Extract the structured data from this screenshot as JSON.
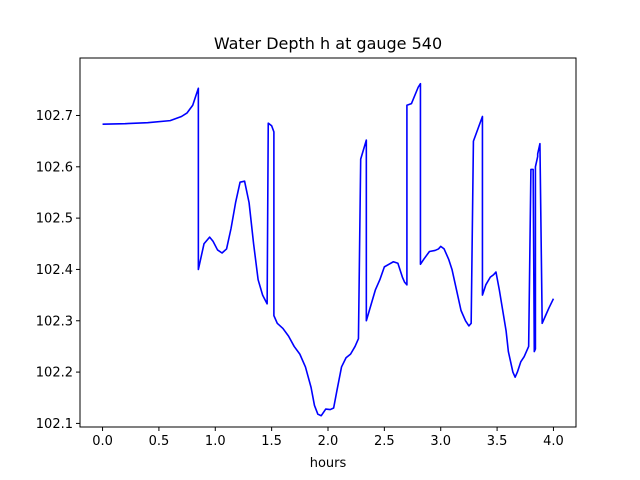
{
  "chart_data": {
    "type": "line",
    "title": "Water Depth h at gauge 540",
    "xlabel": "hours",
    "ylabel": "",
    "xlim": [
      -0.2,
      4.2
    ],
    "ylim": [
      102.093,
      102.812
    ],
    "xticks": [
      0.0,
      0.5,
      1.0,
      1.5,
      2.0,
      2.5,
      3.0,
      3.5,
      4.0
    ],
    "xtick_labels": [
      "0.0",
      "0.5",
      "1.0",
      "1.5",
      "2.0",
      "2.5",
      "3.0",
      "3.5",
      "4.0"
    ],
    "yticks": [
      102.1,
      102.2,
      102.3,
      102.4,
      102.5,
      102.6,
      102.7
    ],
    "ytick_labels": [
      "102.1",
      "102.2",
      "102.3",
      "102.4",
      "102.5",
      "102.6",
      "102.7"
    ],
    "grid": false,
    "series": [
      {
        "color": "#0000ff",
        "x": [
          0.0,
          0.2,
          0.4,
          0.6,
          0.7,
          0.75,
          0.8,
          0.83,
          0.85,
          0.85,
          0.9,
          0.95,
          0.98,
          1.02,
          1.06,
          1.1,
          1.14,
          1.18,
          1.22,
          1.26,
          1.3,
          1.34,
          1.38,
          1.42,
          1.46,
          1.47,
          1.47,
          1.5,
          1.52,
          1.52,
          1.55,
          1.6,
          1.65,
          1.7,
          1.75,
          1.8,
          1.85,
          1.88,
          1.91,
          1.94,
          1.98,
          2.02,
          2.05,
          2.08,
          2.12,
          2.16,
          2.2,
          2.24,
          2.27,
          2.29,
          2.29,
          2.34,
          2.34,
          2.38,
          2.42,
          2.46,
          2.5,
          2.54,
          2.58,
          2.62,
          2.66,
          2.68,
          2.7,
          2.7,
          2.74,
          2.8,
          2.82,
          2.82,
          2.85,
          2.9,
          2.95,
          2.98,
          3.0,
          3.03,
          3.07,
          3.1,
          3.14,
          3.18,
          3.22,
          3.25,
          3.27,
          3.29,
          3.29,
          3.37,
          3.37,
          3.4,
          3.44,
          3.47,
          3.49,
          3.52,
          3.55,
          3.58,
          3.6,
          3.62,
          3.64,
          3.66,
          3.68,
          3.71,
          3.74,
          3.78,
          3.8,
          3.82,
          3.83,
          3.83,
          3.84,
          3.84,
          3.85,
          3.86,
          3.86,
          3.88,
          3.88,
          3.9,
          3.93,
          3.96,
          4.0
        ],
        "y": [
          102.683,
          102.684,
          102.686,
          102.69,
          102.698,
          102.705,
          102.72,
          102.74,
          102.753,
          102.4,
          102.45,
          102.463,
          102.455,
          102.438,
          102.432,
          102.44,
          102.48,
          102.53,
          102.57,
          102.572,
          102.53,
          102.45,
          102.38,
          102.35,
          102.333,
          102.685,
          102.685,
          102.68,
          102.668,
          102.31,
          102.295,
          102.285,
          102.27,
          102.25,
          102.235,
          102.21,
          102.17,
          102.135,
          102.118,
          102.115,
          102.128,
          102.127,
          102.13,
          102.165,
          102.21,
          102.228,
          102.235,
          102.25,
          102.265,
          102.615,
          102.615,
          102.652,
          102.3,
          102.33,
          102.36,
          102.38,
          102.405,
          102.41,
          102.415,
          102.412,
          102.385,
          102.375,
          102.37,
          102.72,
          102.723,
          102.755,
          102.762,
          102.41,
          102.42,
          102.435,
          102.437,
          102.44,
          102.445,
          102.44,
          102.42,
          102.4,
          102.36,
          102.32,
          102.3,
          102.29,
          102.295,
          102.65,
          102.65,
          102.698,
          102.35,
          102.37,
          102.385,
          102.39,
          102.395,
          102.36,
          102.32,
          102.28,
          102.24,
          102.22,
          102.2,
          102.19,
          102.2,
          102.22,
          102.23,
          102.25,
          102.595,
          102.595,
          102.24,
          102.24,
          102.245,
          102.6,
          102.61,
          102.62,
          102.625,
          102.645,
          102.645,
          102.295,
          102.31,
          102.325,
          102.343
        ]
      }
    ]
  }
}
